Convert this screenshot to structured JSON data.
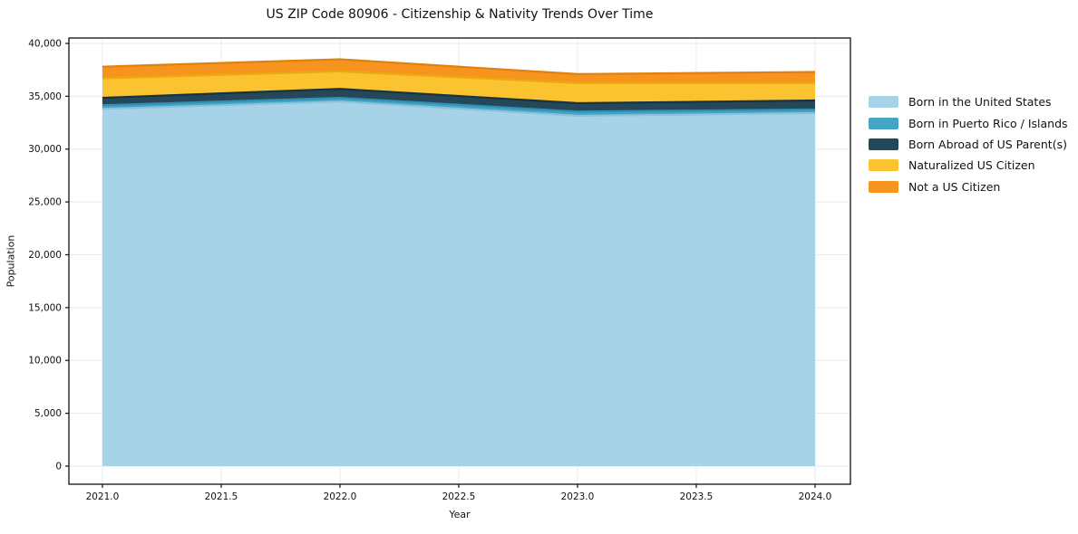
{
  "chart_data": {
    "type": "area",
    "stacked": true,
    "title": "US ZIP Code 80906 - Citizenship & Nativity Trends Over Time",
    "xlabel": "Year",
    "ylabel": "Population",
    "x": [
      2021,
      2022,
      2023,
      2024
    ],
    "series": [
      {
        "name": "Born in the United States",
        "color": "#a7d3e8",
        "edge_color": "#8bc2dc",
        "values": [
          33800,
          34500,
          33150,
          33400
        ]
      },
      {
        "name": "Born in Puerto Rico / Islands",
        "color": "#45a5c5",
        "edge_color": "#3390b2",
        "values": [
          350,
          350,
          400,
          350
        ]
      },
      {
        "name": "Born Abroad of US Parent(s)",
        "color": "#24475a",
        "edge_color": "#18323f",
        "values": [
          700,
          850,
          800,
          850
        ]
      },
      {
        "name": "Naturalized US Citizen",
        "color": "#fcc330",
        "edge_color": "#eaab10",
        "values": [
          1850,
          1650,
          1900,
          1650
        ]
      },
      {
        "name": "Not a US Citizen",
        "color": "#f7941e",
        "edge_color": "#e0810c",
        "values": [
          1100,
          1150,
          850,
          1050
        ]
      }
    ],
    "x_ticks": [
      2021.0,
      2021.5,
      2022.0,
      2022.5,
      2023.0,
      2023.5,
      2024.0
    ],
    "x_tick_labels": [
      "2021.0",
      "2021.5",
      "2022.0",
      "2022.5",
      "2023.0",
      "2023.5",
      "2024.0"
    ],
    "y_ticks": [
      0,
      5000,
      10000,
      15000,
      20000,
      25000,
      30000,
      35000,
      40000
    ],
    "y_tick_labels": [
      "0",
      "5,000",
      "10,000",
      "15,000",
      "20,000",
      "25,000",
      "30,000",
      "35,000",
      "40,000"
    ],
    "xlim": [
      2020.859,
      2024.149
    ],
    "ylim": [
      -1713,
      40512
    ],
    "grid": true,
    "legend_position": "right"
  }
}
